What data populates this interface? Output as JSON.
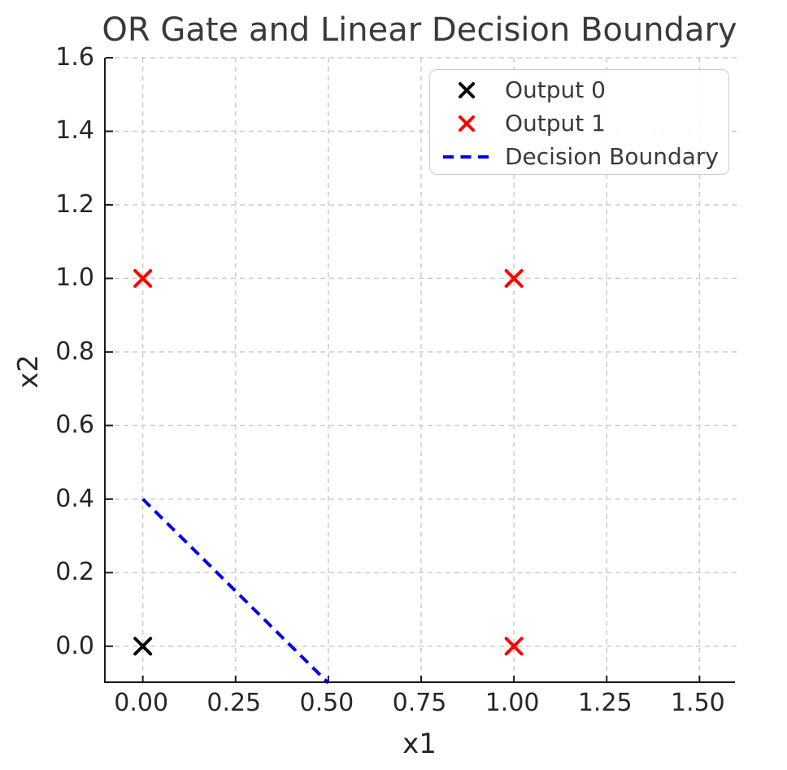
{
  "figure": {
    "background": "#ffffff"
  },
  "chart_data": {
    "type": "scatter",
    "title": "OR Gate and Linear Decision Boundary",
    "xlabel": "x1",
    "ylabel": "x2",
    "xlim": [
      -0.1,
      1.6
    ],
    "ylim": [
      -0.1,
      1.6
    ],
    "xticks": {
      "values": [
        0,
        0.25,
        0.5,
        0.75,
        1.0,
        1.25,
        1.5
      ],
      "labels": [
        "0.00",
        "0.25",
        "0.50",
        "0.75",
        "1.00",
        "1.25",
        "1.50"
      ]
    },
    "yticks": {
      "values": [
        0,
        0.2,
        0.4,
        0.6,
        0.8,
        1.0,
        1.2,
        1.4,
        1.6
      ],
      "labels": [
        "0.0",
        "0.2",
        "0.4",
        "0.6",
        "0.8",
        "1.0",
        "1.2",
        "1.4",
        "1.6"
      ]
    },
    "grid": {
      "visible": true,
      "color": "#cccccc",
      "style": "dashed"
    },
    "axis_color": "#1a1a1a",
    "tick_text_color": "#262626",
    "title_color": "#3a3a3a",
    "series": [
      {
        "name": "Output 0",
        "kind": "scatter",
        "marker": "x",
        "color": "#000000",
        "points": [
          [
            0,
            0
          ]
        ]
      },
      {
        "name": "Output 1",
        "kind": "scatter",
        "marker": "x",
        "color": "#ff0000",
        "points": [
          [
            0,
            1
          ],
          [
            1,
            0
          ],
          [
            1,
            1
          ]
        ]
      },
      {
        "name": "Decision Boundary",
        "kind": "line",
        "linestyle": "dashed",
        "color": "#0000ee",
        "points": [
          [
            0,
            0.4
          ],
          [
            0.5,
            -0.1
          ]
        ]
      }
    ],
    "legend": {
      "position": "upper right",
      "border_color": "#cccccc",
      "background": "#ffffff"
    }
  }
}
